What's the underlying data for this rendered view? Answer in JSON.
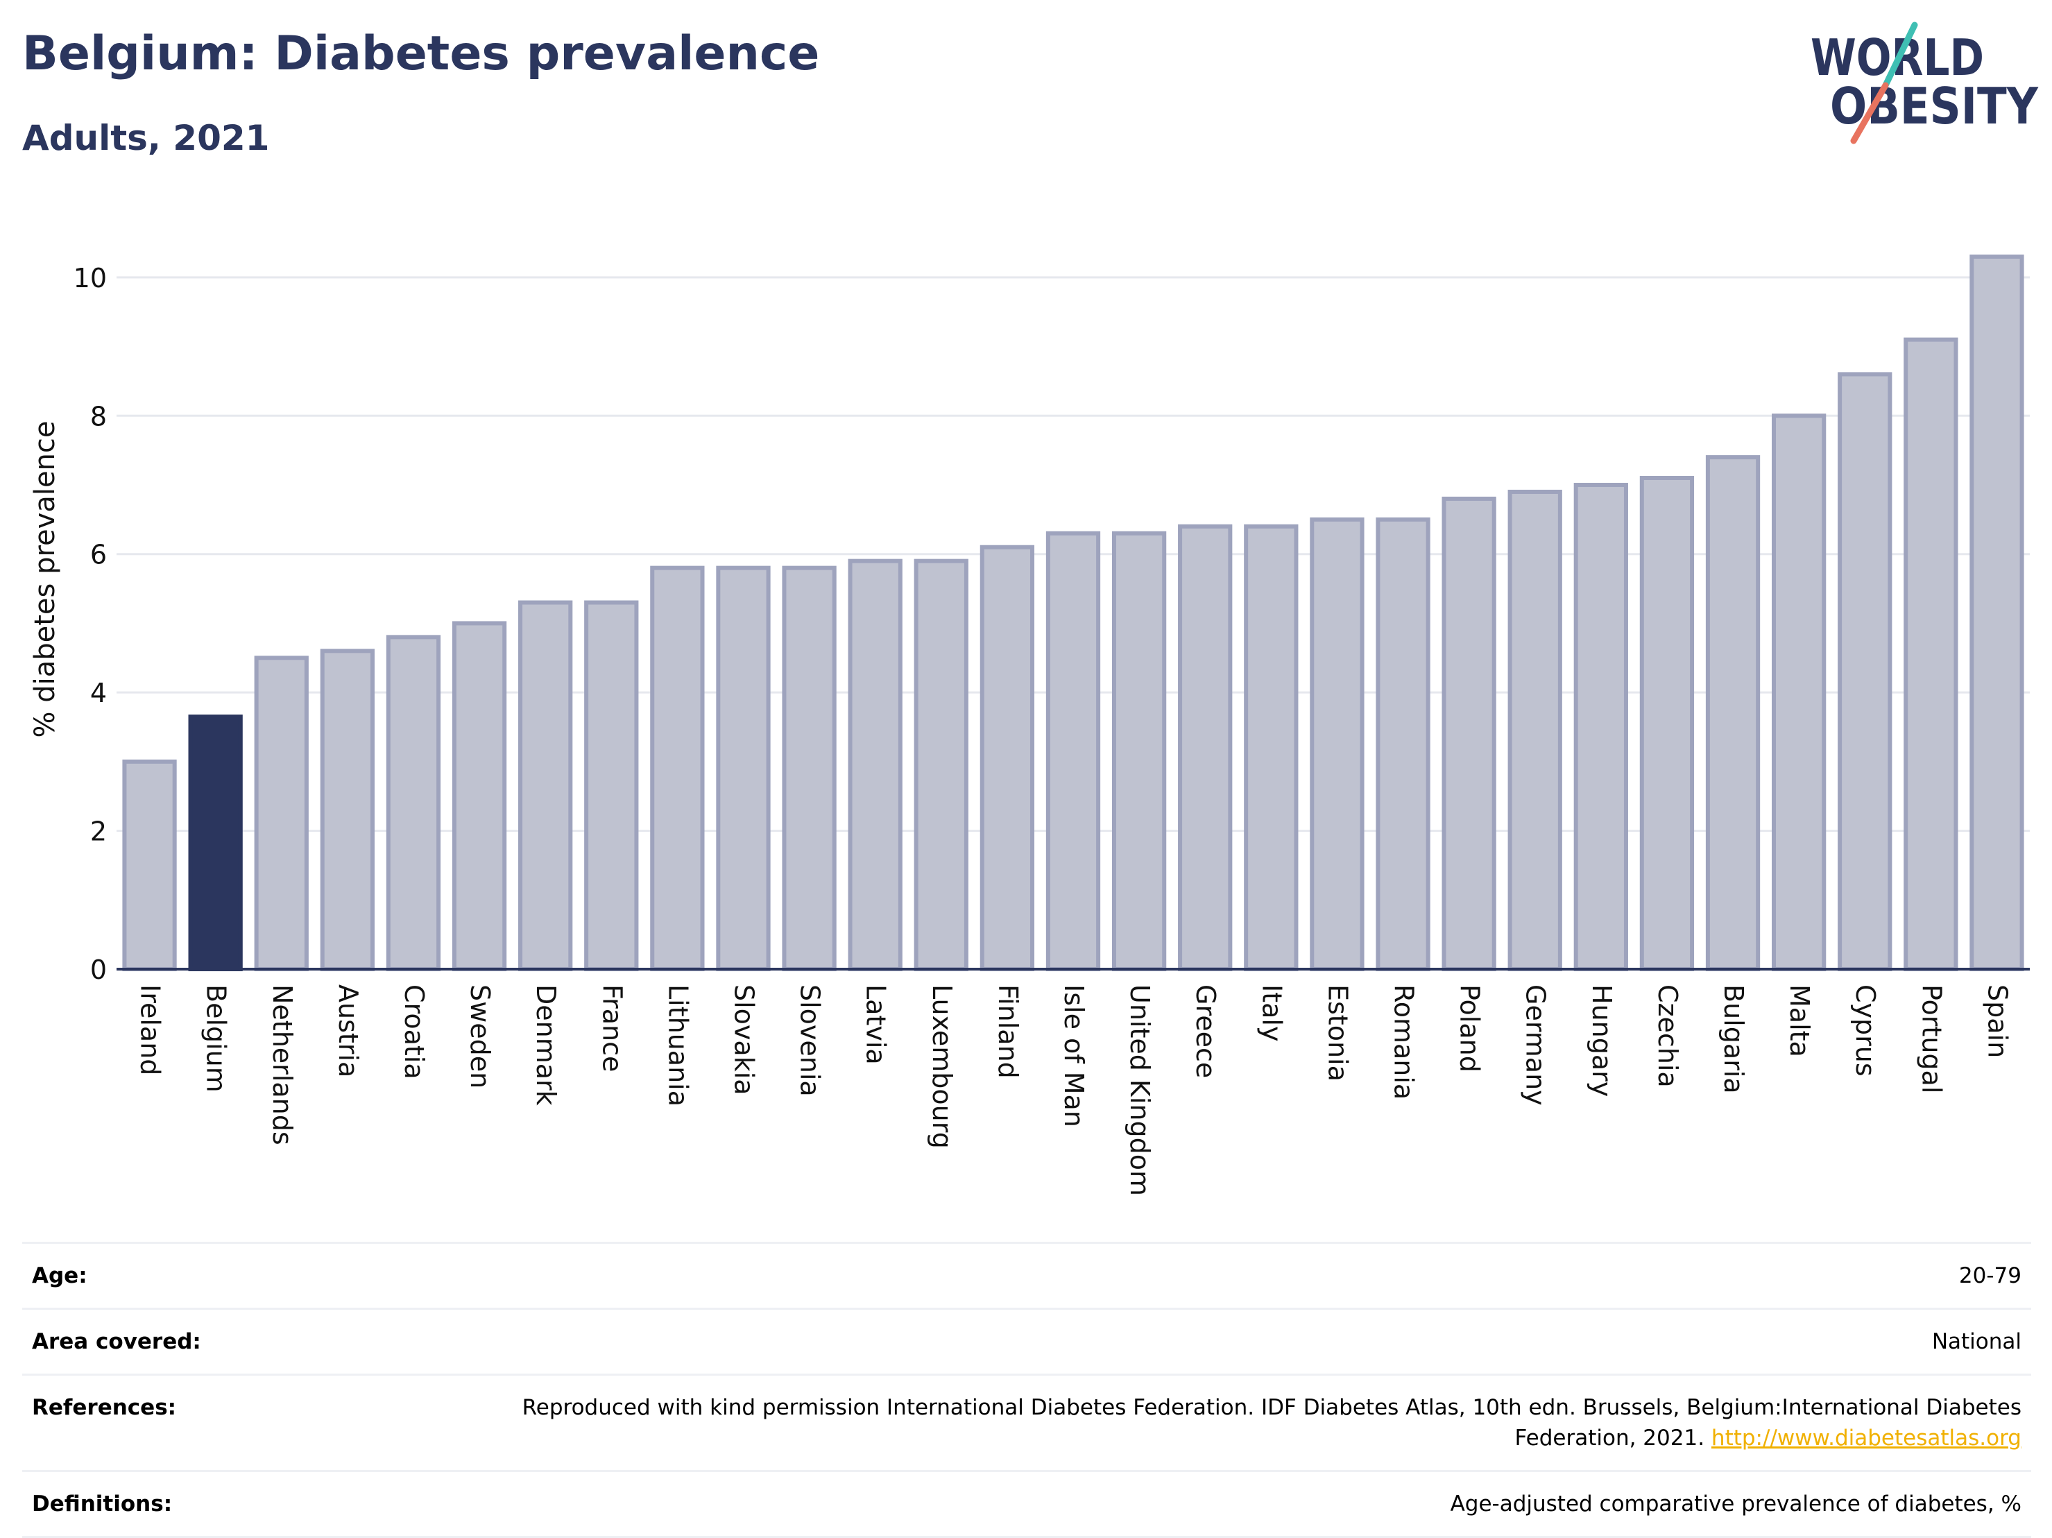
{
  "header": {
    "title": "Belgium: Diabetes prevalence",
    "subtitle": "Adults, 2021"
  },
  "logo": {
    "line1": "WORLD",
    "line2": "OBESITY",
    "colors": {
      "text": "#2b365e",
      "teal": "#3fbfb3",
      "coral": "#e8735f"
    }
  },
  "colors": {
    "bar_fill": "#bfc2d0",
    "bar_stroke": "#9ea3bd",
    "highlight_fill": "#2b365e",
    "axis": "#2b365e",
    "grid": "#e6e8ee"
  },
  "chart_data": {
    "type": "bar",
    "ylabel": "% diabetes prevalence",
    "ylim": [
      0,
      10.6
    ],
    "yticks": [
      "0",
      "2",
      "4",
      "6",
      "8",
      "10"
    ],
    "grid": true,
    "highlight": "Belgium",
    "categories": [
      "Ireland",
      "Belgium",
      "Netherlands",
      "Austria",
      "Croatia",
      "Sweden",
      "Denmark",
      "France",
      "Lithuania",
      "Slovakia",
      "Slovenia",
      "Latvia",
      "Luxembourg",
      "Finland",
      "Isle of Man",
      "United Kingdom",
      "Greece",
      "Italy",
      "Estonia",
      "Romania",
      "Poland",
      "Germany",
      "Hungary",
      "Czechia",
      "Bulgaria",
      "Malta",
      "Cyprus",
      "Portugal",
      "Spain"
    ],
    "values": [
      3.0,
      3.65,
      4.5,
      4.6,
      4.8,
      5.0,
      5.3,
      5.3,
      5.8,
      5.8,
      5.8,
      5.9,
      5.9,
      6.1,
      6.3,
      6.3,
      6.4,
      6.4,
      6.5,
      6.5,
      6.8,
      6.9,
      7.0,
      7.1,
      7.4,
      8.0,
      8.6,
      9.1,
      10.3
    ]
  },
  "meta": {
    "age": {
      "label": "Age:",
      "value": "20-79"
    },
    "area": {
      "label": "Area covered:",
      "value": "National"
    },
    "references": {
      "label": "References:",
      "value": "Reproduced with kind permission International Diabetes Federation.  IDF Diabetes Atlas, 10th edn. Brussels, Belgium:International Diabetes Federation, 2021.",
      "link": "http://www.diabetesatlas.org"
    },
    "definitions": {
      "label": "Definitions:",
      "value": "Age-adjusted comparative prevalence of diabetes, %"
    }
  }
}
